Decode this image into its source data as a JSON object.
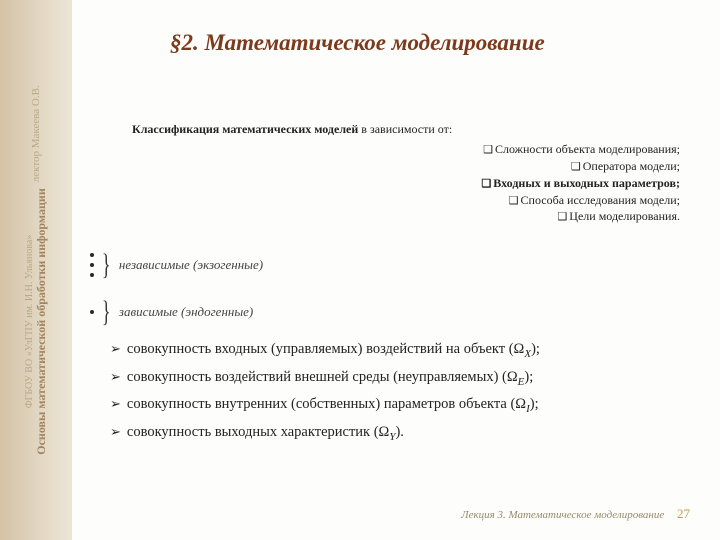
{
  "sidebar": {
    "line1": "ФГБОУ ВО «УлГПУ им. И.Н. Ульянова»",
    "line2": "Основы математической обработки информации",
    "line3": "лектор Макеева О.В."
  },
  "title": "§2. Математическое моделирование",
  "classification": {
    "lead_bold": "Классификация математических моделей",
    "lead_rest": " в зависимости от:",
    "items": [
      {
        "text": "Сложности объекта моделирования;",
        "bold": false
      },
      {
        "text": "Оператора модели;",
        "bold": false
      },
      {
        "text": "Входных и выходных параметров;",
        "bold": true
      },
      {
        "text": "Способа исследования модели;",
        "bold": false
      },
      {
        "text": "Цели моделирования.",
        "bold": false
      }
    ]
  },
  "brace_groups": {
    "g1": {
      "dot_count": 3,
      "label": "независимые (экзогенные)"
    },
    "g2": {
      "dot_count": 1,
      "label": "зависимые (эндогенные)"
    }
  },
  "arrow_items": [
    {
      "pre": "совокупность входных (управляемых) воздействий на объект (Ω",
      "sub": "X",
      "post": ");"
    },
    {
      "pre": "совокупность воздействий внешней среды (неуправляемых) (Ω",
      "sub": "E",
      "post": ");"
    },
    {
      "pre": "совокупность внутренних (собственных) параметров объекта (Ω",
      "sub": "I",
      "post": ");"
    },
    {
      "pre": "совокупность выходных характеристик (Ω",
      "sub": "Y",
      "post": ")."
    }
  ],
  "footer": {
    "text": "Лекция 3. Математическое моделирование",
    "page": "27"
  },
  "style": {
    "title_color": "#7b3a1c",
    "sidebar_gradient": [
      "#d4c3a6",
      "#ede6d6"
    ],
    "footer_color": "#9a8a68",
    "pagenum_color": "#c49a52"
  }
}
